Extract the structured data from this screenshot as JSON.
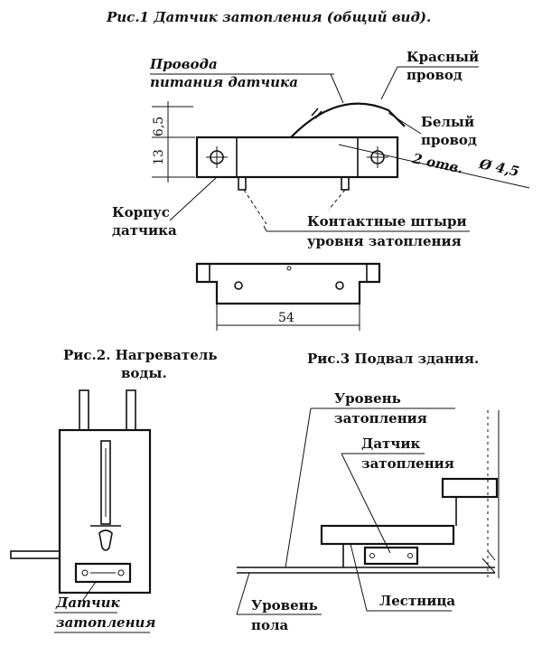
{
  "fig1": {
    "caption": "Рис.1  Датчик затопления (общий вид).",
    "wires_label_1": "Провода",
    "wires_label_2": "питания датчика",
    "red_wire_1": "Красный",
    "red_wire_2": "провод",
    "white_wire_1": "Белый",
    "white_wire_2": "провод",
    "holes": "2 отв.",
    "hole_diameter": "Ø 4,5",
    "dim_height_top": "6,5",
    "dim_height_body": "13",
    "body_label_1": "Корпус",
    "body_label_2": "датчика",
    "pins_label_1": "Контактные штыри",
    "pins_label_2": "уровня затопления",
    "dim_width": "54"
  },
  "fig2": {
    "caption_1": "Рис.2.  Нагреватель",
    "caption_2": "воды.",
    "sensor_label_1": "Датчик",
    "sensor_label_2": "затопления"
  },
  "fig3": {
    "caption": "Рис.3   Подвал здания.",
    "flood_level_1": "Уровень",
    "flood_level_2": "затопления",
    "sensor_1": "Датчик",
    "sensor_2": "затопления",
    "floor_level_1": "Уровень",
    "floor_level_2": "пола",
    "stairs": "Лестница"
  }
}
